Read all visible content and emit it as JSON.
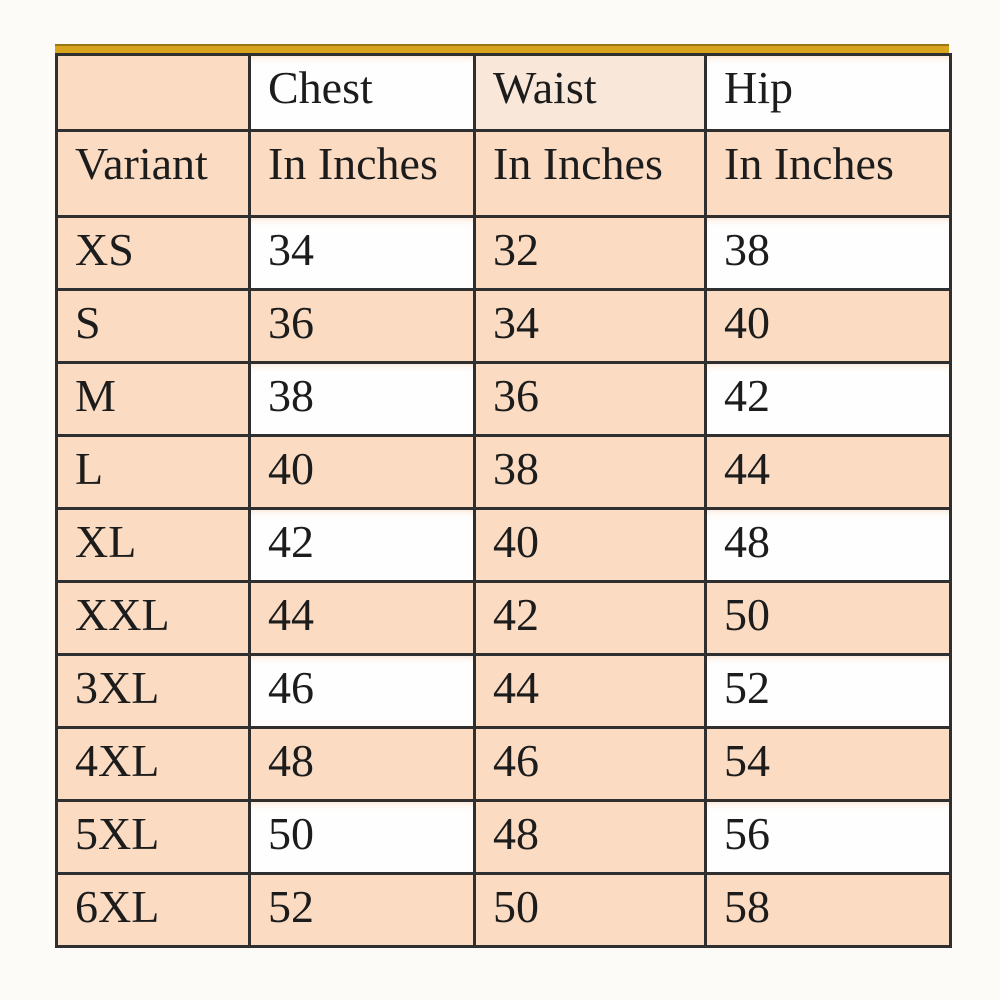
{
  "colors": {
    "page_background": "#fcfbf8",
    "peach": "#fbdcc3",
    "header_light_peach": "#f9e8da",
    "white_cell": "#fefefe",
    "grid_border": "#2f2f2f",
    "accent_bar": "#d8a41e",
    "accent_bar_edge": "#9a7714",
    "text": "#1c1c1c"
  },
  "table": {
    "measure_headers": [
      "",
      "Chest",
      "Waist",
      "Hip"
    ],
    "unit_headers": [
      "Variant",
      "In Inches",
      "In Inches",
      "In Inches"
    ],
    "rows": [
      {
        "variant": "XS",
        "chest": "34",
        "waist": "32",
        "hip": "38"
      },
      {
        "variant": "S",
        "chest": "36",
        "waist": "34",
        "hip": "40"
      },
      {
        "variant": "M",
        "chest": "38",
        "waist": "36",
        "hip": "42"
      },
      {
        "variant": "L",
        "chest": "40",
        "waist": "38",
        "hip": "44"
      },
      {
        "variant": "XL",
        "chest": "42",
        "waist": "40",
        "hip": "48"
      },
      {
        "variant": "XXL",
        "chest": "44",
        "waist": "42",
        "hip": "50"
      },
      {
        "variant": "3XL",
        "chest": "46",
        "waist": "44",
        "hip": "52"
      },
      {
        "variant": "4XL",
        "chest": "48",
        "waist": "46",
        "hip": "54"
      },
      {
        "variant": "5XL",
        "chest": "50",
        "waist": "48",
        "hip": "56"
      },
      {
        "variant": "6XL",
        "chest": "52",
        "waist": "50",
        "hip": "58"
      }
    ]
  },
  "chart_data": {
    "type": "table",
    "title": "",
    "header_rows": [
      [
        "",
        "Chest",
        "Waist",
        "Hip"
      ],
      [
        "Variant",
        "In Inches",
        "In Inches",
        "In Inches"
      ]
    ],
    "rows": [
      [
        "XS",
        34,
        32,
        38
      ],
      [
        "S",
        36,
        34,
        40
      ],
      [
        "M",
        38,
        36,
        42
      ],
      [
        "L",
        40,
        38,
        44
      ],
      [
        "XL",
        42,
        40,
        48
      ],
      [
        "XXL",
        44,
        42,
        50
      ],
      [
        "3XL",
        46,
        44,
        52
      ],
      [
        "4XL",
        48,
        46,
        54
      ],
      [
        "5XL",
        50,
        48,
        56
      ],
      [
        "6XL",
        52,
        50,
        58
      ]
    ]
  }
}
